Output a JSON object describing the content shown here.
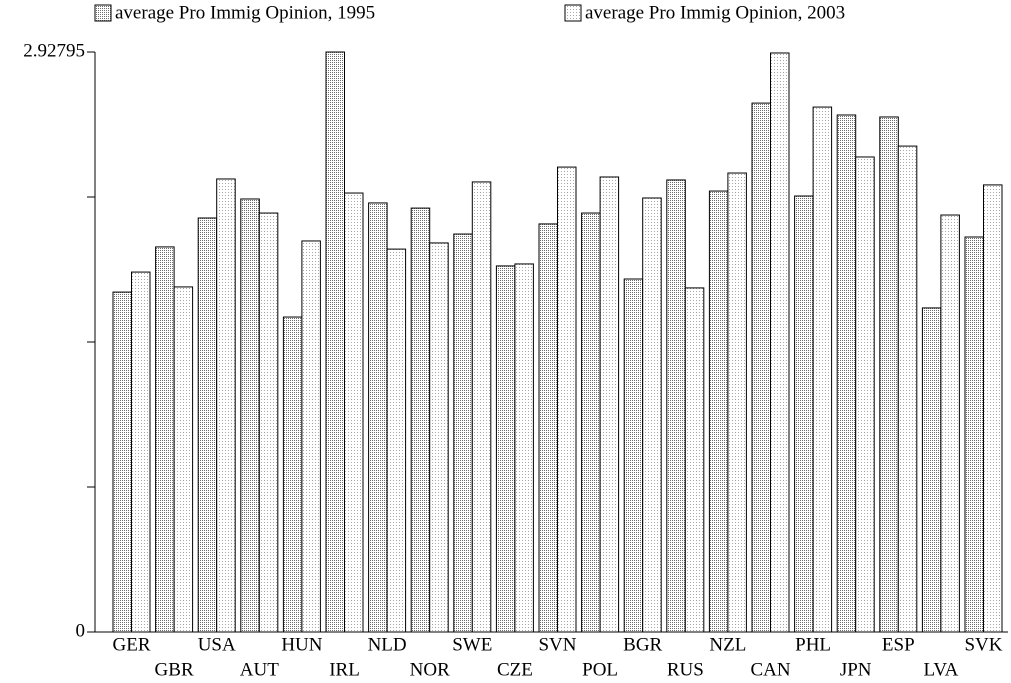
{
  "chart_data": {
    "type": "bar",
    "categories": [
      "GER",
      "GBR",
      "USA",
      "AUT",
      "HUN",
      "IRL",
      "NLD",
      "NOR",
      "SWE",
      "CZE",
      "SVN",
      "POL",
      "BGR",
      "RUS",
      "NZL",
      "CAN",
      "PHL",
      "JPN",
      "ESP",
      "LVA",
      "SVK"
    ],
    "series": [
      {
        "name": "average Pro Immig Opinion, 1995",
        "color": "#6e6e6e",
        "values": [
          1.716,
          1.944,
          2.09,
          2.186,
          1.59,
          2.92795,
          2.166,
          2.14,
          2.009,
          1.848,
          2.06,
          2.115,
          1.782,
          2.282,
          2.226,
          2.67,
          2.201,
          2.61,
          2.6,
          1.636,
          1.994
        ]
      },
      {
        "name": "average Pro Immig Opinion, 2003",
        "color": "#a8a8a8",
        "values": [
          1.817,
          1.742,
          2.287,
          2.115,
          1.974,
          2.216,
          1.933,
          1.964,
          2.272,
          1.858,
          2.347,
          2.297,
          2.191,
          1.737,
          2.317,
          2.923,
          2.65,
          2.398,
          2.453,
          2.105,
          2.257
        ]
      }
    ],
    "ylim": [
      0,
      2.92795
    ],
    "yticks": [
      0,
      2.92795
    ],
    "minor_yticks": [
      0.7319875,
      1.463975,
      2.1959625
    ]
  }
}
